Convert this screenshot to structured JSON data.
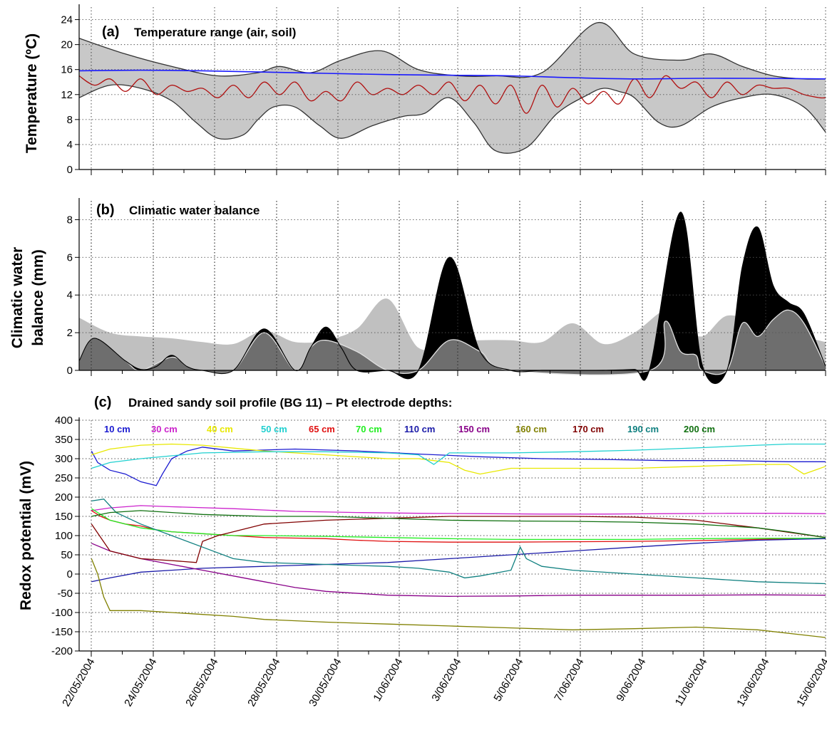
{
  "chart_data": [
    {
      "panel": "(a)",
      "type": "area",
      "title": "Temperature range (air, soil)",
      "ylabel": "Temperature (ºC)",
      "ylim": [
        0,
        26
      ],
      "yticks": [
        0,
        4,
        8,
        12,
        16,
        20,
        24
      ],
      "xlim_days": [
        0,
        24.2
      ],
      "grid": true,
      "series": [
        {
          "role": "air-max",
          "color": "#333333",
          "x": [
            0,
            1.5,
            3,
            4.5,
            5.8,
            6.5,
            7.5,
            8.5,
            9.8,
            11,
            12.3,
            13.5,
            15,
            16.8,
            18,
            19.5,
            20.5,
            21.5,
            22.5,
            23.5,
            24.2
          ],
          "values": [
            21,
            18.5,
            16.5,
            15,
            15.5,
            16.5,
            15.5,
            17.5,
            19,
            16,
            15,
            15,
            15.5,
            23.5,
            18.5,
            17.5,
            18.5,
            16.5,
            15,
            14.5,
            14.5
          ]
        },
        {
          "role": "air-min",
          "color": "#333333",
          "x": [
            0,
            1,
            2,
            3,
            3.8,
            4.5,
            5.3,
            5.8,
            6.3,
            7,
            7.8,
            8.5,
            9.5,
            10.5,
            11.2,
            12,
            12.8,
            13.5,
            14.5,
            15.5,
            16.5,
            17,
            17.5,
            18,
            18.8,
            19.5,
            20.5,
            21.5,
            22.5,
            23.5,
            24.2
          ],
          "values": [
            11.5,
            13.5,
            13,
            11,
            7.5,
            5,
            5.5,
            8,
            10,
            10,
            7,
            5,
            7,
            8.5,
            9,
            11.5,
            7.5,
            3,
            3.5,
            9,
            12,
            13,
            12.5,
            11.5,
            7.5,
            7,
            10,
            11.5,
            12,
            10,
            6
          ]
        },
        {
          "role": "soil-blue",
          "color": "#1a1aff",
          "x": [
            0,
            2,
            4,
            6,
            8,
            10,
            12,
            14,
            16,
            18,
            20,
            22,
            24.2
          ],
          "values": [
            15.8,
            15.9,
            15.8,
            15.6,
            15.4,
            15.2,
            15.1,
            15.0,
            14.7,
            14.5,
            14.6,
            14.6,
            14.5
          ]
        },
        {
          "role": "soil-red",
          "color": "#b11010",
          "x": [
            0,
            0.5,
            1,
            1.5,
            2,
            2.5,
            3,
            3.5,
            4,
            4.5,
            5,
            5.5,
            6,
            6.5,
            7,
            7.5,
            8,
            8.5,
            9,
            9.5,
            10,
            10.5,
            11,
            11.5,
            12,
            12.5,
            13,
            13.5,
            14,
            14.5,
            15,
            15.5,
            16,
            16.5,
            17,
            17.5,
            18,
            18.5,
            19,
            19.5,
            20,
            20.5,
            21,
            21.5,
            22,
            22.5,
            23,
            23.5,
            24,
            24.2
          ],
          "values": [
            15,
            13.5,
            14.5,
            12.5,
            14.5,
            12,
            13.5,
            12.5,
            13,
            11.5,
            13.5,
            11.5,
            14,
            12,
            14,
            11,
            12.5,
            11,
            14,
            12,
            13,
            12,
            13.5,
            12,
            14,
            11,
            13.5,
            10.5,
            13.5,
            9,
            13.5,
            10,
            13,
            10.5,
            12.5,
            10.5,
            14.5,
            11.5,
            15,
            13,
            14,
            11.5,
            14,
            12,
            13.5,
            13,
            13,
            12,
            11.5,
            11.5
          ]
        }
      ]
    },
    {
      "panel": "(b)",
      "type": "area",
      "title": "Climatic water balance",
      "ylabel_lines": [
        "Climatic water",
        "balance (mm)"
      ],
      "ylim": [
        0,
        9
      ],
      "yticks": [
        0,
        2,
        4,
        6,
        8
      ],
      "xlim_days": [
        0,
        24.2
      ],
      "grid": true,
      "series": [
        {
          "role": "light-gray",
          "color": "#c0c0c0",
          "x": [
            0,
            1,
            2,
            3,
            4,
            5,
            6,
            7,
            8,
            9,
            10,
            11,
            12,
            13,
            14,
            15,
            16,
            17,
            18,
            19,
            19.5,
            20.2,
            21,
            22,
            23,
            24.2
          ],
          "values": [
            2.8,
            2.0,
            1.8,
            1.7,
            1.5,
            1.4,
            2.1,
            1.5,
            1.6,
            2.2,
            3.8,
            1.2,
            1.5,
            1.6,
            1.6,
            1.5,
            2.5,
            1.4,
            2.0,
            3.2,
            2.5,
            1.8,
            2.9,
            2.5,
            2.0,
            1.5
          ]
        },
        {
          "role": "black",
          "color": "#000000",
          "x": [
            0,
            0.5,
            1.5,
            2,
            2.5,
            3,
            3.5,
            4,
            5,
            6,
            7,
            7.5,
            8,
            8.5,
            9,
            10,
            11,
            12,
            13,
            14,
            15,
            16,
            17,
            18,
            18.5,
            19.5,
            20.2,
            21,
            21.5,
            22,
            22.5,
            23,
            23.5,
            24.2
          ],
          "values": [
            0.5,
            1.7,
            0.5,
            0.05,
            0.2,
            0.8,
            0.2,
            0,
            0,
            2.2,
            0,
            1.2,
            2.3,
            1.2,
            0,
            0,
            0,
            6.0,
            1.0,
            0,
            0,
            0,
            0,
            0.05,
            0.1,
            8.4,
            0.3,
            0,
            5.5,
            7.6,
            4.5,
            3.6,
            3.0,
            0.2
          ]
        },
        {
          "role": "dark-gray",
          "color": "#6e6e6e",
          "x": [
            0,
            0.5,
            1.5,
            2,
            3,
            3.5,
            4,
            5,
            6,
            7,
            7.5,
            8,
            9,
            10,
            11,
            12,
            13,
            14,
            18.5,
            19,
            19.5,
            20,
            20.2,
            21,
            21.5,
            22,
            22.5,
            23,
            23.5,
            24.2
          ],
          "values": [
            0.5,
            1.7,
            0.5,
            0,
            0.7,
            0.2,
            0,
            0,
            2.0,
            0,
            1.2,
            1.6,
            1.0,
            0,
            0,
            1.6,
            1.0,
            0,
            0,
            2.6,
            1.0,
            0.8,
            0,
            0,
            2.5,
            1.8,
            2.7,
            3.2,
            2.5,
            0.2
          ]
        }
      ]
    },
    {
      "panel": "(c)",
      "type": "line",
      "title": "Drained sandy soil profile (BG 11) – Pt electrode depths:",
      "ylabel": "Redox potential (mV)",
      "ylim": [
        -200,
        400
      ],
      "yticks": [
        -200,
        -150,
        -100,
        -50,
        0,
        50,
        100,
        150,
        200,
        250,
        300,
        350,
        400
      ],
      "xlim_days": [
        0,
        24.2
      ],
      "grid": true,
      "x_tick_labels": [
        "22/05/2004",
        "24/05/2004",
        "26/05/2004",
        "28/05/2004",
        "30/05/2004",
        "1/06/2004",
        "3/06/2004",
        "5/06/2004",
        "7/06/2004",
        "9/06/2004",
        "11/06/2004",
        "13/06/2004",
        "15/06/2004"
      ],
      "series": [
        {
          "name": "10 cm",
          "color": "#1a1ad0",
          "x": [
            0.4,
            0.6,
            1,
            1.5,
            2,
            2.5,
            2.7,
            3,
            3.5,
            4,
            5,
            7,
            9,
            11,
            13,
            15,
            17,
            19,
            21,
            23,
            24.2
          ],
          "values": [
            320,
            290,
            270,
            260,
            240,
            230,
            260,
            300,
            320,
            330,
            320,
            325,
            320,
            312,
            305,
            300,
            298,
            295,
            295,
            292,
            292
          ]
        },
        {
          "name": "30 cm",
          "color": "#cc22cc",
          "x": [
            0.4,
            1,
            2,
            3,
            5,
            7,
            9,
            11,
            13,
            15,
            17,
            19,
            21,
            23,
            24.2
          ],
          "values": [
            165,
            172,
            178,
            175,
            170,
            163,
            160,
            158,
            157,
            156,
            156,
            157,
            158,
            158,
            157
          ]
        },
        {
          "name": "40 cm",
          "color": "#e8e800",
          "x": [
            0.4,
            1,
            2,
            3,
            4,
            6,
            8,
            10,
            11,
            11.5,
            12,
            12.5,
            13,
            14,
            16,
            18,
            20,
            22,
            23,
            23.5,
            24.2
          ],
          "values": [
            310,
            325,
            335,
            338,
            335,
            320,
            310,
            300,
            300,
            295,
            290,
            270,
            260,
            275,
            275,
            275,
            280,
            285,
            285,
            260,
            280
          ]
        },
        {
          "name": "50 cm",
          "color": "#20d0d0",
          "x": [
            0.4,
            1,
            2,
            4,
            6,
            8,
            10,
            11,
            11.5,
            12,
            14,
            16,
            18,
            20,
            22,
            23,
            24.2
          ],
          "values": [
            275,
            290,
            300,
            315,
            318,
            318,
            315,
            310,
            285,
            315,
            315,
            318,
            322,
            328,
            335,
            338,
            338
          ]
        },
        {
          "name": "65 cm",
          "color": "#e01010",
          "x": [
            0.4,
            0.7,
            1,
            1.5,
            2,
            2.5,
            3,
            4,
            5,
            6,
            8,
            9,
            10,
            12,
            14,
            16,
            18,
            20,
            22,
            24.2
          ],
          "values": [
            165,
            150,
            140,
            130,
            125,
            115,
            110,
            105,
            100,
            95,
            92,
            88,
            85,
            83,
            83,
            84,
            85,
            87,
            90,
            93
          ]
        },
        {
          "name": "70 cm",
          "color": "#22ee22",
          "x": [
            0.4,
            1,
            2,
            3,
            4,
            5,
            6,
            8,
            10,
            12,
            14,
            16,
            18,
            20,
            22,
            24.2
          ],
          "values": [
            170,
            140,
            120,
            110,
            105,
            100,
            100,
            98,
            95,
            92,
            90,
            90,
            90,
            92,
            93,
            93
          ]
        },
        {
          "name": "110 cm",
          "color": "#1a1aa8",
          "x": [
            0.4,
            1,
            2,
            3,
            4,
            6,
            8,
            10,
            12,
            14,
            16,
            18,
            20,
            22,
            24.2
          ],
          "values": [
            -20,
            -10,
            5,
            10,
            15,
            20,
            25,
            30,
            40,
            50,
            60,
            70,
            80,
            88,
            92
          ]
        },
        {
          "name": "150 cm",
          "color": "#880088",
          "x": [
            0.4,
            1,
            2,
            3,
            4,
            5,
            6,
            7,
            8,
            10,
            12,
            14,
            16,
            18,
            20,
            22,
            24.2
          ],
          "values": [
            80,
            60,
            40,
            25,
            10,
            -5,
            -20,
            -35,
            -45,
            -55,
            -58,
            -57,
            -55,
            -55,
            -55,
            -54,
            -55
          ]
        },
        {
          "name": "160 cm",
          "color": "#808000",
          "x": [
            0.4,
            0.6,
            0.8,
            1,
            2,
            3,
            4,
            5,
            6,
            8,
            10,
            12,
            14,
            16,
            18,
            20,
            22,
            24.2
          ],
          "values": [
            40,
            0,
            -60,
            -95,
            -95,
            -100,
            -105,
            -110,
            -118,
            -125,
            -130,
            -135,
            -140,
            -145,
            -142,
            -138,
            -145,
            -165
          ]
        },
        {
          "name": "170 cm",
          "color": "#800000",
          "x": [
            0.4,
            1,
            2,
            3,
            3.8,
            4,
            4.5,
            5,
            6,
            8,
            10,
            12,
            14,
            16,
            18,
            20,
            22,
            24.2
          ],
          "values": [
            130,
            60,
            40,
            35,
            30,
            85,
            100,
            110,
            130,
            140,
            145,
            150,
            150,
            150,
            148,
            140,
            120,
            95
          ]
        },
        {
          "name": "190 cm",
          "color": "#108080",
          "x": [
            0.4,
            0.8,
            1.2,
            2,
            3,
            4,
            5,
            6,
            8,
            10,
            11,
            12,
            12.5,
            13,
            14,
            14.3,
            14.5,
            15,
            16,
            18,
            20,
            22,
            24.2
          ],
          "values": [
            190,
            195,
            160,
            130,
            100,
            70,
            40,
            30,
            25,
            20,
            15,
            5,
            -10,
            -5,
            10,
            70,
            40,
            20,
            10,
            0,
            -10,
            -20,
            -25
          ]
        },
        {
          "name": "200 cm",
          "color": "#107010",
          "x": [
            0.4,
            1,
            2,
            4,
            6,
            8,
            10,
            12,
            14,
            16,
            18,
            20,
            22,
            23,
            24.2
          ],
          "values": [
            150,
            160,
            165,
            155,
            150,
            150,
            145,
            140,
            138,
            137,
            135,
            130,
            120,
            110,
            95
          ]
        }
      ]
    }
  ]
}
